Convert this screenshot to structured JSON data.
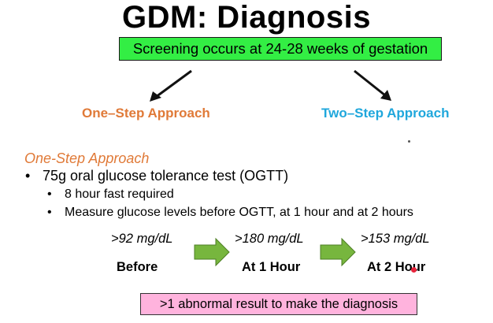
{
  "title": "GDM: Diagnosis",
  "screening": "Screening occurs at 24-28 weeks of gestation",
  "approaches": {
    "one_step": "One–Step Approach",
    "two_step": "Two–Step Approach"
  },
  "section": {
    "heading": "One-Step Approach",
    "bullet1": "75g oral glucose tolerance test (OGTT)",
    "sub1": "8 hour fast required",
    "sub2": "Measure glucose levels before OGTT, at 1 hour and at 2 hours"
  },
  "thresholds": [
    {
      "value": ">92 mg/dL",
      "label": "Before"
    },
    {
      "value": ">180 mg/dL",
      "label": "At 1 Hour"
    },
    {
      "value": ">153 mg/dL",
      "label": "At 2 Hour"
    }
  ],
  "diagnosis_rule": ">1 abnormal result to make the diagnosis",
  "colors": {
    "screening_box": "#33ee44",
    "one_step": "#e07a38",
    "two_step": "#1fa7dc",
    "flow_arrow": "#77b63e",
    "diagnosis_box": "#ffb3dd"
  }
}
